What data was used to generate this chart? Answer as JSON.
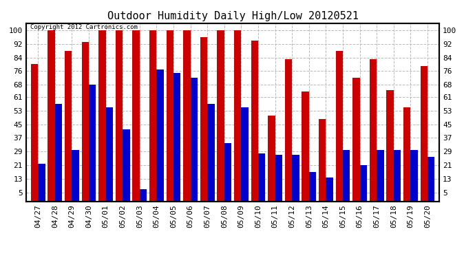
{
  "title": "Outdoor Humidity Daily High/Low 20120521",
  "copyright": "Copyright 2012 Cartronics.com",
  "categories": [
    "04/27",
    "04/28",
    "04/29",
    "04/30",
    "05/01",
    "05/02",
    "05/03",
    "05/04",
    "05/05",
    "05/06",
    "05/07",
    "05/08",
    "05/09",
    "05/10",
    "05/11",
    "05/12",
    "05/13",
    "05/14",
    "05/15",
    "05/16",
    "05/17",
    "05/18",
    "05/19",
    "05/20"
  ],
  "highs": [
    80,
    100,
    88,
    93,
    100,
    100,
    100,
    100,
    100,
    100,
    96,
    100,
    100,
    94,
    50,
    83,
    64,
    48,
    88,
    72,
    83,
    65,
    55,
    79
  ],
  "lows": [
    22,
    57,
    30,
    68,
    55,
    42,
    7,
    77,
    75,
    72,
    57,
    34,
    55,
    28,
    27,
    27,
    17,
    14,
    30,
    21,
    30,
    30,
    30,
    26
  ],
  "bar_color_high": "#cc0000",
  "bar_color_low": "#0000cc",
  "background_color": "#ffffff",
  "grid_color": "#bbbbbb",
  "yticks": [
    5,
    13,
    21,
    29,
    37,
    45,
    53,
    61,
    68,
    76,
    84,
    92,
    100
  ],
  "ylim": [
    0,
    104
  ],
  "title_fontsize": 11,
  "tick_fontsize": 8,
  "bar_width": 0.42
}
